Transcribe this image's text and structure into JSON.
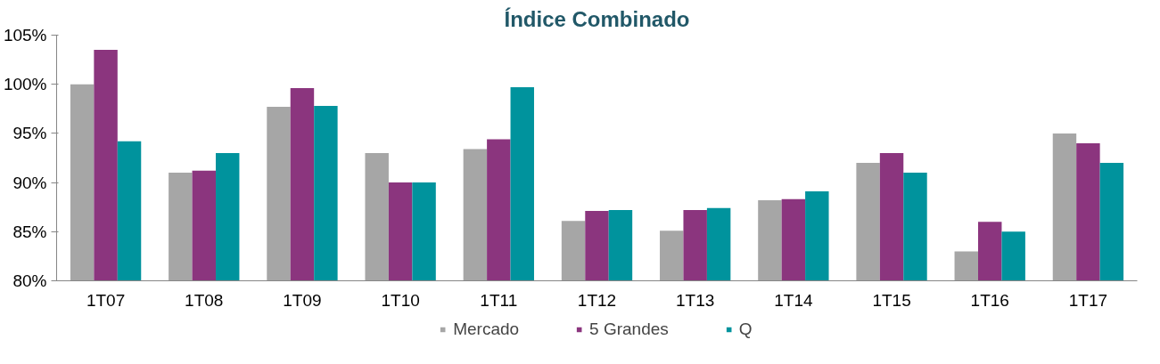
{
  "chart_data": {
    "type": "bar",
    "title": "Índice Combinado",
    "categories": [
      "1T07",
      "1T08",
      "1T09",
      "1T10",
      "1T11",
      "1T12",
      "1T13",
      "1T14",
      "1T15",
      "1T16",
      "1T17"
    ],
    "series": [
      {
        "name": "Mercado",
        "color": "#a6a6a6",
        "values": [
          100,
          91,
          97.7,
          93,
          93.4,
          86.1,
          85.1,
          88.2,
          92,
          83,
          95
        ]
      },
      {
        "name": "5 Grandes",
        "color": "#8b357e",
        "values": [
          103.5,
          91.2,
          99.6,
          90,
          94.4,
          87.1,
          87.2,
          88.3,
          93,
          86,
          94
        ]
      },
      {
        "name": "Q",
        "color": "#00939d",
        "values": [
          94.2,
          93,
          97.8,
          90,
          99.7,
          87.2,
          87.4,
          89.1,
          91,
          85,
          92
        ]
      }
    ],
    "ylim": [
      80,
      105
    ],
    "yticks": [
      {
        "value": 80,
        "label": "80%"
      },
      {
        "value": 85,
        "label": "85%"
      },
      {
        "value": 90,
        "label": "90%"
      },
      {
        "value": 95,
        "label": "95%"
      },
      {
        "value": 100,
        "label": "100%"
      },
      {
        "value": 105,
        "label": "105%"
      }
    ],
    "grid": false,
    "legend": "bottom"
  }
}
